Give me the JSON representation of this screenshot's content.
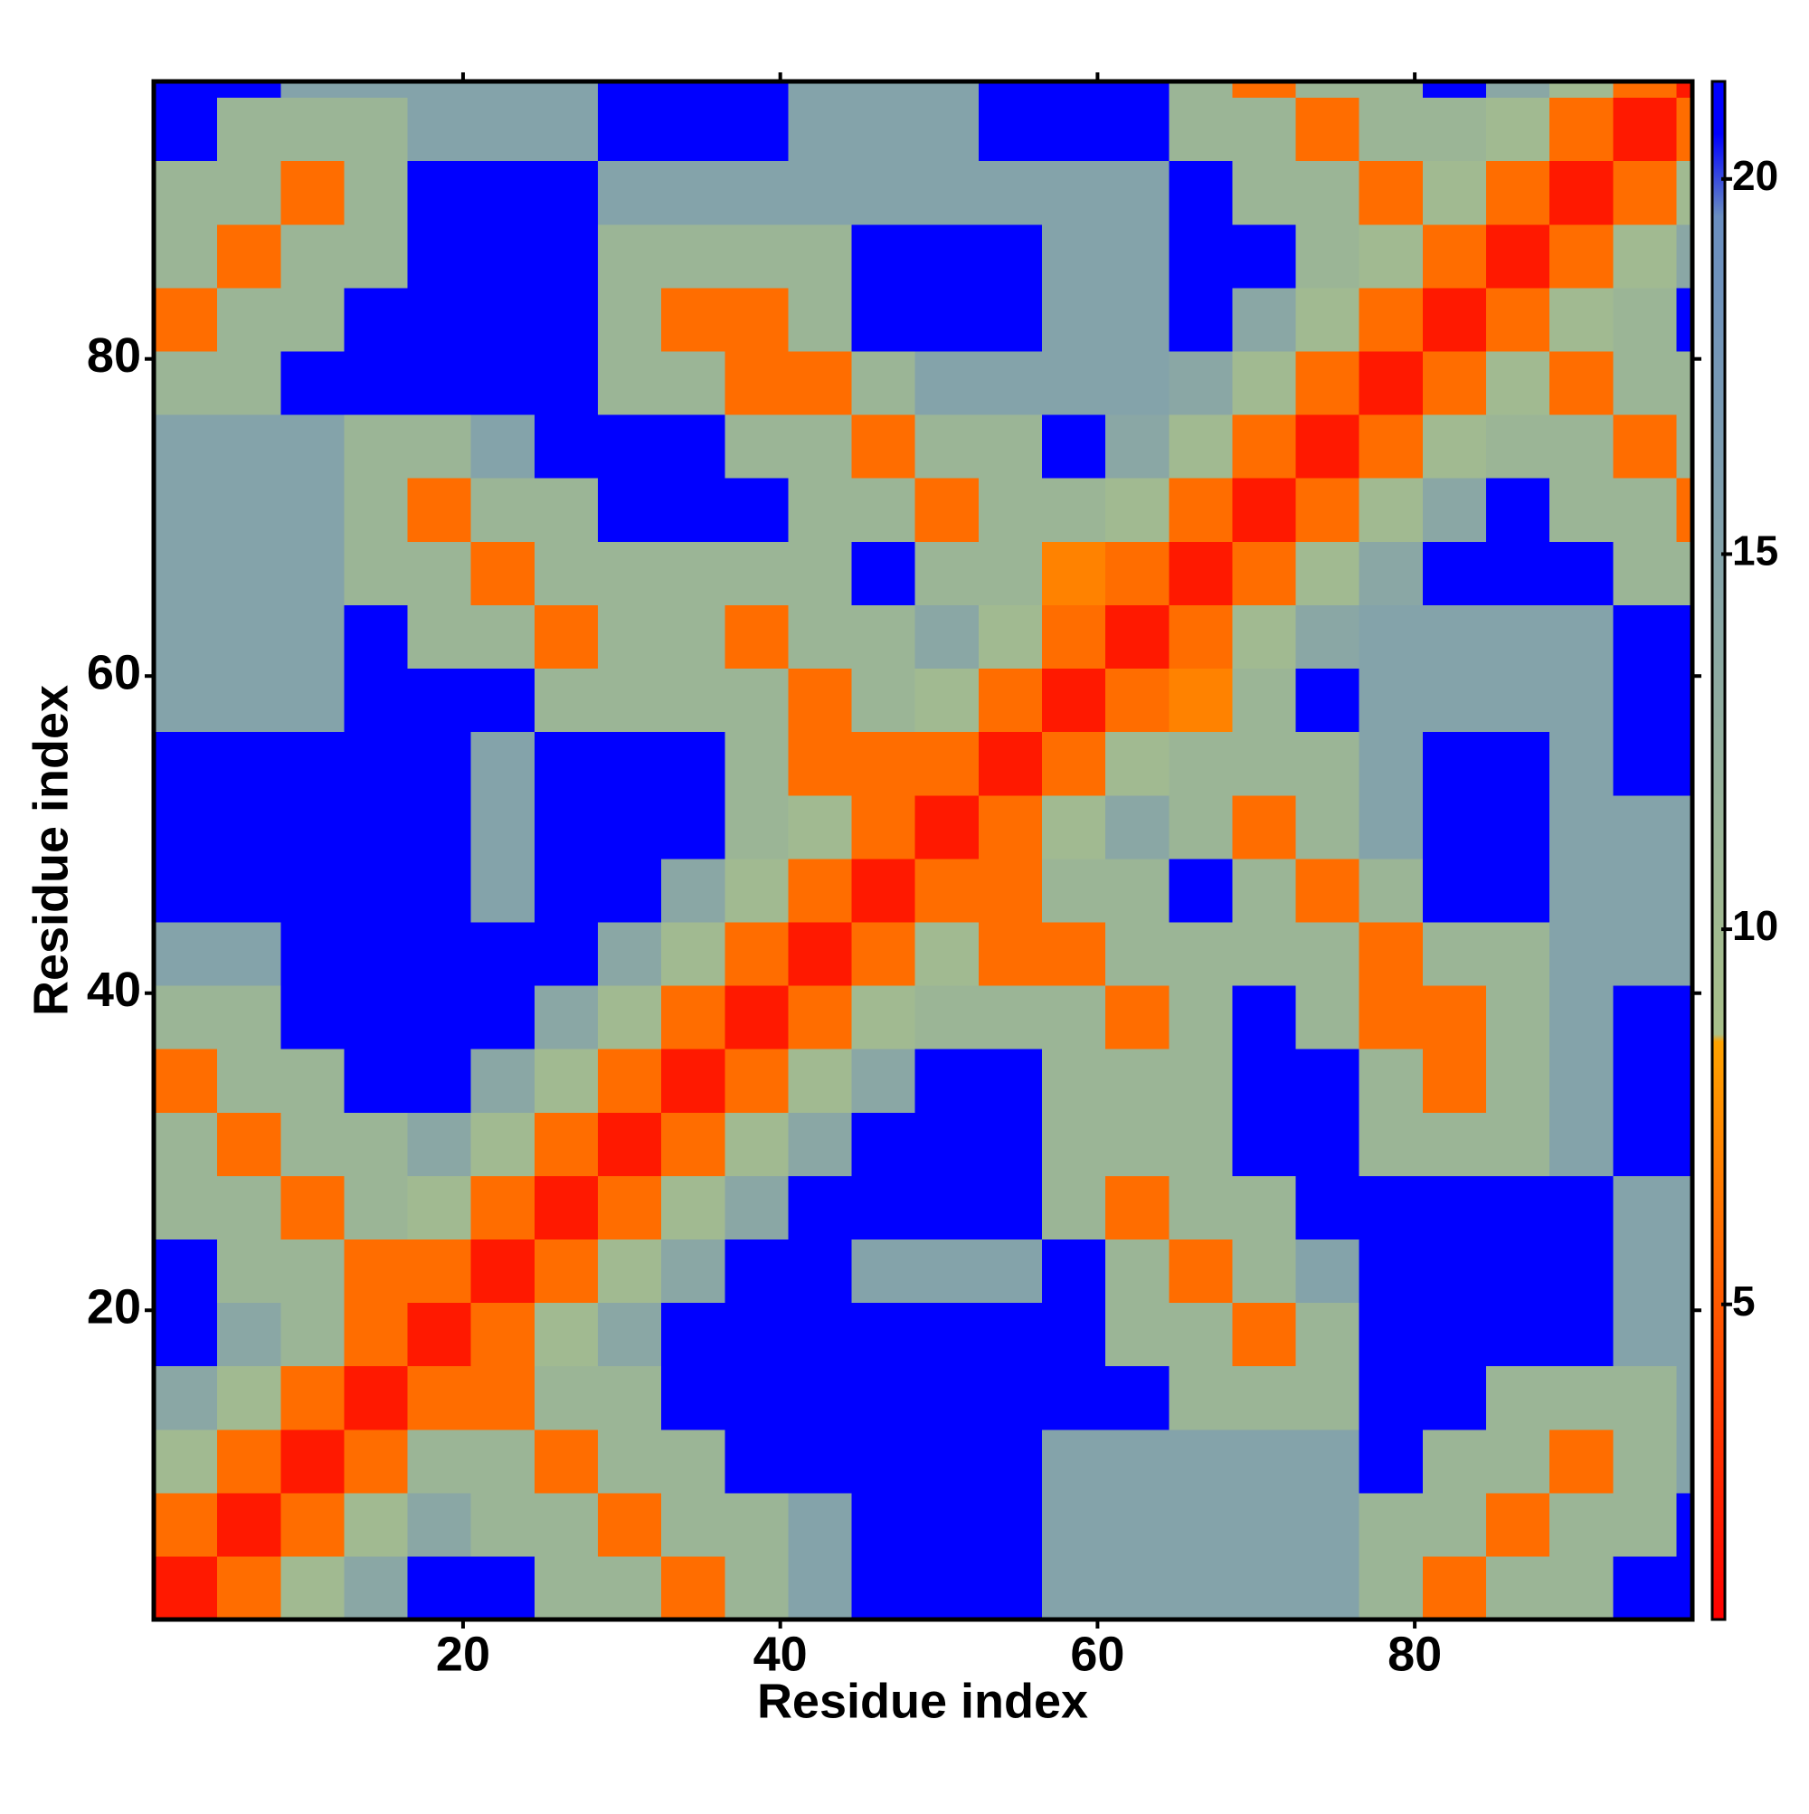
{
  "chart_data": {
    "type": "heatmap",
    "x_label": "Residue index",
    "y_label": "Residue index",
    "xbins": [
      0.5,
      4.5,
      8.5,
      12.5,
      16.5,
      20.5,
      24.5,
      28.5,
      32.5,
      36.5,
      40.5,
      44.5,
      48.5,
      52.5,
      56.5,
      60.5,
      64.5,
      68.5,
      72.5,
      76.5,
      80.5,
      84.5,
      88.5,
      92.5,
      96.5,
      97.5
    ],
    "ybins": [
      0.5,
      4.5,
      8.5,
      12.5,
      16.5,
      20.5,
      24.5,
      28.5,
      32.5,
      36.5,
      40.5,
      44.5,
      48.5,
      52.5,
      56.5,
      60.5,
      64.5,
      68.5,
      72.5,
      76.5,
      80.5,
      84.5,
      88.5,
      92.5,
      96.5,
      97.5
    ],
    "z": [
      [
        2,
        6,
        10,
        14,
        21,
        21,
        11,
        11,
        6,
        11,
        15,
        21,
        21,
        21,
        15,
        15,
        15,
        15,
        15,
        11,
        6,
        11,
        11,
        21,
        21
      ],
      [
        6,
        2,
        6,
        10,
        14,
        11,
        11,
        6,
        11,
        11,
        15,
        21,
        21,
        21,
        15,
        15,
        15,
        15,
        15,
        11,
        11,
        6,
        11,
        11,
        21
      ],
      [
        10,
        6,
        2,
        6,
        11,
        11,
        6,
        11,
        11,
        21,
        21,
        21,
        21,
        21,
        15,
        15,
        15,
        15,
        15,
        21,
        11,
        11,
        6,
        11,
        15
      ],
      [
        14,
        10,
        6,
        2,
        6,
        6,
        11,
        11,
        21,
        21,
        21,
        21,
        21,
        21,
        21,
        21,
        11,
        11,
        11,
        21,
        21,
        11,
        11,
        11,
        15
      ],
      [
        21,
        14,
        11,
        6,
        2,
        6,
        10,
        14,
        21,
        21,
        21,
        21,
        21,
        21,
        21,
        11,
        11,
        6,
        11,
        21,
        21,
        21,
        21,
        15,
        15
      ],
      [
        21,
        11,
        11,
        6,
        6,
        2,
        6,
        10,
        14,
        21,
        21,
        15,
        15,
        15,
        21,
        11,
        6,
        11,
        15,
        21,
        21,
        21,
        21,
        15,
        15
      ],
      [
        11,
        11,
        6,
        11,
        10,
        6,
        2,
        6,
        10,
        14,
        21,
        21,
        21,
        21,
        11,
        6,
        11,
        11,
        21,
        21,
        21,
        21,
        21,
        15,
        15
      ],
      [
        11,
        6,
        11,
        11,
        14,
        10,
        6,
        2,
        6,
        10,
        14,
        21,
        21,
        21,
        11,
        11,
        11,
        21,
        21,
        11,
        11,
        11,
        15,
        21,
        21
      ],
      [
        6,
        11,
        11,
        21,
        21,
        14,
        10,
        6,
        2,
        6,
        10,
        14,
        21,
        21,
        11,
        11,
        11,
        21,
        21,
        11,
        6,
        11,
        15,
        21,
        21
      ],
      [
        11,
        11,
        21,
        21,
        21,
        21,
        14,
        10,
        6,
        2,
        6,
        10,
        11,
        11,
        11,
        6,
        11,
        21,
        11,
        6,
        6,
        11,
        15,
        21,
        21
      ],
      [
        15,
        15,
        21,
        21,
        21,
        21,
        21,
        14,
        10,
        6,
        2,
        6,
        10,
        6,
        6,
        11,
        11,
        11,
        11,
        6,
        11,
        11,
        15,
        15,
        15
      ],
      [
        21,
        21,
        21,
        21,
        21,
        15,
        21,
        21,
        14,
        10,
        6,
        2,
        6,
        6,
        11,
        11,
        21,
        11,
        6,
        11,
        21,
        21,
        15,
        15,
        15
      ],
      [
        21,
        21,
        21,
        21,
        21,
        15,
        21,
        21,
        21,
        11,
        10,
        6,
        2,
        6,
        10,
        14,
        11,
        6,
        11,
        15,
        21,
        21,
        15,
        15,
        15
      ],
      [
        21,
        21,
        21,
        21,
        21,
        15,
        21,
        21,
        21,
        11,
        6,
        6,
        6,
        2,
        6,
        10,
        11,
        11,
        11,
        15,
        21,
        21,
        15,
        21,
        21
      ],
      [
        15,
        15,
        15,
        21,
        21,
        21,
        11,
        11,
        11,
        11,
        6,
        11,
        10,
        6,
        2,
        6,
        7,
        11,
        21,
        15,
        15,
        15,
        15,
        21,
        21
      ],
      [
        15,
        15,
        15,
        21,
        11,
        11,
        6,
        11,
        11,
        6,
        11,
        11,
        14,
        10,
        6,
        2,
        6,
        10,
        14,
        15,
        15,
        15,
        15,
        21,
        21
      ],
      [
        15,
        15,
        15,
        11,
        11,
        6,
        11,
        11,
        11,
        11,
        11,
        21,
        11,
        11,
        7,
        6,
        2,
        6,
        10,
        14,
        21,
        21,
        21,
        11,
        11
      ],
      [
        15,
        15,
        15,
        11,
        6,
        11,
        11,
        21,
        21,
        21,
        11,
        11,
        6,
        11,
        11,
        10,
        6,
        2,
        6,
        10,
        14,
        21,
        11,
        11,
        6
      ],
      [
        15,
        15,
        15,
        11,
        11,
        15,
        21,
        21,
        21,
        11,
        11,
        6,
        11,
        11,
        21,
        14,
        10,
        6,
        2,
        6,
        10,
        11,
        11,
        6,
        11
      ],
      [
        11,
        11,
        21,
        21,
        21,
        21,
        21,
        11,
        11,
        6,
        6,
        11,
        15,
        15,
        15,
        15,
        14,
        10,
        6,
        2,
        6,
        10,
        6,
        11,
        11
      ],
      [
        6,
        11,
        11,
        21,
        21,
        21,
        21,
        11,
        6,
        6,
        11,
        21,
        21,
        21,
        15,
        15,
        21,
        14,
        10,
        6,
        2,
        6,
        10,
        11,
        21
      ],
      [
        11,
        6,
        11,
        11,
        21,
        21,
        21,
        11,
        11,
        11,
        11,
        21,
        21,
        21,
        15,
        15,
        21,
        21,
        11,
        10,
        6,
        2,
        6,
        10,
        14
      ],
      [
        11,
        11,
        6,
        11,
        21,
        21,
        21,
        15,
        15,
        15,
        15,
        15,
        15,
        15,
        15,
        15,
        21,
        11,
        11,
        6,
        10,
        6,
        2,
        6,
        10
      ],
      [
        21,
        11,
        11,
        11,
        15,
        15,
        15,
        21,
        21,
        21,
        15,
        15,
        15,
        21,
        21,
        21,
        11,
        11,
        6,
        11,
        11,
        10,
        6,
        2,
        6
      ],
      [
        21,
        21,
        15,
        15,
        15,
        15,
        15,
        21,
        21,
        21,
        15,
        15,
        15,
        21,
        21,
        21,
        11,
        6,
        11,
        11,
        21,
        14,
        10,
        6,
        2
      ]
    ],
    "xlim": [
      0.5,
      97.5
    ],
    "ylim": [
      0.5,
      97.5
    ],
    "xticks": [
      20,
      40,
      60,
      80
    ],
    "yticks": [
      20,
      40,
      60,
      80
    ],
    "colorbar": {
      "zlim": [
        0.8,
        21.3
      ],
      "ticks": [
        5,
        10,
        15,
        20
      ],
      "colorscale": [
        [
          0.8,
          "#ff0000"
        ],
        [
          8.5,
          "#ffa200"
        ],
        [
          8.6,
          "#a9c08a"
        ],
        [
          19.5,
          "#6a8ec0"
        ],
        [
          20.6,
          "#0000ff"
        ],
        [
          21.3,
          "#0000ff"
        ]
      ]
    }
  }
}
